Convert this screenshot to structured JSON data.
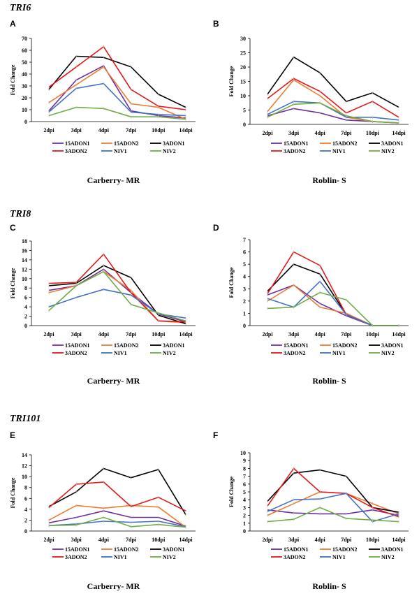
{
  "sections": [
    {
      "title": "TRI6"
    },
    {
      "title": "TRI8"
    },
    {
      "title": "TRI101"
    }
  ],
  "chart_data": [
    {
      "panel": "A",
      "section": "TRI6",
      "type": "line",
      "ylabel": "Fold Change",
      "caption": "Carberry- MR",
      "categories": [
        "2dpi",
        "3dpi",
        "4dpi",
        "7dpi",
        "10dpi",
        "14dpi"
      ],
      "yticks": [
        "0",
        "10",
        "20",
        "30",
        "40",
        "50",
        "60",
        "70"
      ],
      "ylim": [
        0,
        70
      ],
      "series": [
        {
          "name": "15ADON1",
          "color": "#7030a0",
          "values": [
            9,
            35,
            47,
            9,
            5,
            3
          ]
        },
        {
          "name": "15ADON2",
          "color": "#ed7d31",
          "values": [
            16,
            31,
            46,
            15,
            12,
            2
          ]
        },
        {
          "name": "3ADON1",
          "color": "#000000",
          "values": [
            27,
            55,
            54,
            46,
            23,
            12
          ]
        },
        {
          "name": "3ADON2",
          "color": "#e31a1c",
          "values": [
            29,
            46,
            63,
            27,
            13,
            10
          ]
        },
        {
          "name": "NIV1",
          "color": "#4472c4",
          "values": [
            8,
            28,
            32,
            8,
            6,
            5
          ]
        },
        {
          "name": "NIV2",
          "color": "#70ad47",
          "values": [
            5,
            12,
            11,
            4,
            4,
            2
          ]
        }
      ]
    },
    {
      "panel": "B",
      "section": "TRI6",
      "type": "line",
      "ylabel": "Fold Change",
      "caption": "Roblin- S",
      "categories": [
        "2dpi",
        "3dpi",
        "4dpi",
        "7dpi",
        "10dpi",
        "14dpi"
      ],
      "yticks": [
        "0",
        "5",
        "10",
        "15",
        "20",
        "25",
        "30"
      ],
      "ylim": [
        0,
        30
      ],
      "series": [
        {
          "name": "15ADON1",
          "color": "#7030a0",
          "values": [
            3,
            5.5,
            4,
            1.5,
            1,
            0.5
          ]
        },
        {
          "name": "15ADON2",
          "color": "#ed7d31",
          "values": [
            4.5,
            15.5,
            10,
            2.5,
            1,
            0.5
          ]
        },
        {
          "name": "3ADON1",
          "color": "#000000",
          "values": [
            10.5,
            23.5,
            18,
            8,
            11,
            6
          ]
        },
        {
          "name": "3ADON2",
          "color": "#e31a1c",
          "values": [
            9,
            16,
            11.5,
            4,
            8,
            2.5
          ]
        },
        {
          "name": "NIV1",
          "color": "#4472c4",
          "values": [
            3.5,
            8,
            7.5,
            2.5,
            2.5,
            1.5
          ]
        },
        {
          "name": "NIV2",
          "color": "#70ad47",
          "values": [
            2.5,
            7,
            7.5,
            3,
            1,
            0.5
          ]
        }
      ]
    },
    {
      "panel": "C",
      "section": "TRI8",
      "type": "line",
      "ylabel": "Fold Change",
      "caption": "Carberry- MR",
      "categories": [
        "2dpi",
        "3dpi",
        "4dpi",
        "7dpi",
        "10dpi",
        "14dpi"
      ],
      "yticks": [
        "0",
        "2",
        "4",
        "6",
        "8",
        "10",
        "12",
        "14",
        "16",
        "18"
      ],
      "ylim": [
        0,
        18
      ],
      "series": [
        {
          "name": "15ADON1",
          "color": "#7030a0",
          "values": [
            7.5,
            8.5,
            12,
            7,
            2.5,
            0.8
          ]
        },
        {
          "name": "15ADON2",
          "color": "#ed7d31",
          "values": [
            7,
            8.5,
            11.5,
            7.5,
            1,
            0.6
          ]
        },
        {
          "name": "3ADON1",
          "color": "#000000",
          "values": [
            8.5,
            9,
            12.8,
            10.2,
            2.2,
            0.4
          ]
        },
        {
          "name": "3ADON2",
          "color": "#e31a1c",
          "values": [
            9,
            9.2,
            15.2,
            7,
            1,
            0.8
          ]
        },
        {
          "name": "NIV1",
          "color": "#4472c4",
          "values": [
            4,
            6,
            7.7,
            6.5,
            2.5,
            1.6
          ]
        },
        {
          "name": "NIV2",
          "color": "#70ad47",
          "values": [
            3.2,
            8.5,
            11.5,
            4.5,
            2.7,
            1
          ]
        }
      ]
    },
    {
      "panel": "D",
      "section": "TRI8",
      "type": "line",
      "ylabel": "Fold Change",
      "caption": "Roblin- S",
      "categories": [
        "2dpi",
        "3dpi",
        "4dpi",
        "7dpi",
        "10dpi",
        "14dpi"
      ],
      "yticks": [
        "0",
        "1",
        "2",
        "3",
        "4",
        "5",
        "6",
        "7"
      ],
      "ylim": [
        0,
        7
      ],
      "series": [
        {
          "name": "15ADON1",
          "color": "#7030a0",
          "values": [
            2.5,
            3.3,
            1.8,
            0.8,
            0,
            0
          ]
        },
        {
          "name": "15ADON2",
          "color": "#ed7d31",
          "values": [
            2,
            3.3,
            1.5,
            1,
            0,
            0
          ]
        },
        {
          "name": "3ADON1",
          "color": "#000000",
          "values": [
            2.8,
            5,
            4.2,
            0.9,
            0,
            0
          ]
        },
        {
          "name": "3ADON2",
          "color": "#e31a1c",
          "values": [
            2.6,
            6,
            4.9,
            0.9,
            0,
            0
          ]
        },
        {
          "name": "NIV1",
          "color": "#4472c4",
          "values": [
            2.2,
            1.5,
            3.6,
            0.9,
            0,
            0
          ]
        },
        {
          "name": "NIV2",
          "color": "#70ad47",
          "values": [
            1.4,
            1.5,
            2.7,
            2.1,
            0,
            0
          ]
        }
      ]
    },
    {
      "panel": "E",
      "section": "TRI101",
      "type": "line",
      "ylabel": "Fold Change",
      "caption": "Carberry- MR",
      "categories": [
        "2dpi",
        "3dpi",
        "4dpi",
        "7dpi",
        "10dpi",
        "14dpi"
      ],
      "yticks": [
        "0",
        "2",
        "4",
        "6",
        "8",
        "10",
        "12",
        "14"
      ],
      "ylim": [
        0,
        14
      ],
      "series": [
        {
          "name": "15ADON1",
          "color": "#7030a0",
          "values": [
            1.5,
            2.5,
            3.7,
            2.5,
            2.5,
            0.9
          ]
        },
        {
          "name": "15ADON2",
          "color": "#ed7d31",
          "values": [
            2,
            4.7,
            4.2,
            4.7,
            4.4,
            0.7
          ]
        },
        {
          "name": "3ADON1",
          "color": "#000000",
          "values": [
            4.5,
            7.2,
            11.5,
            9.8,
            11.3,
            3
          ]
        },
        {
          "name": "3ADON2",
          "color": "#e31a1c",
          "values": [
            4.3,
            8.6,
            9,
            4.5,
            6.2,
            3.7
          ]
        },
        {
          "name": "NIV1",
          "color": "#4472c4",
          "values": [
            1,
            1.3,
            1.8,
            1.6,
            1.8,
            0.8
          ]
        },
        {
          "name": "NIV2",
          "color": "#70ad47",
          "values": [
            1,
            1.1,
            2.5,
            0.8,
            1.2,
            0.7
          ]
        }
      ]
    },
    {
      "panel": "F",
      "section": "TRI101",
      "type": "line",
      "ylabel": "Fold Change",
      "caption": "Roblin- S",
      "categories": [
        "2dpi",
        "3dpi",
        "4dpi",
        "7dpi",
        "10dpi",
        "14dpi"
      ],
      "yticks": [
        "0",
        "1",
        "2",
        "3",
        "4",
        "5",
        "6",
        "7",
        "8",
        "9",
        "10"
      ],
      "ylim": [
        0,
        10
      ],
      "series": [
        {
          "name": "15ADON1",
          "color": "#7030a0",
          "values": [
            2.7,
            2.3,
            2.2,
            2.2,
            2.7,
            2
          ]
        },
        {
          "name": "15ADON2",
          "color": "#ed7d31",
          "values": [
            2,
            3.5,
            5,
            4.8,
            3.5,
            2.2
          ]
        },
        {
          "name": "3ADON1",
          "color": "#000000",
          "values": [
            3.8,
            7.4,
            7.8,
            7,
            3,
            2.4
          ]
        },
        {
          "name": "3ADON2",
          "color": "#e31a1c",
          "values": [
            3.2,
            8,
            5,
            4.8,
            3,
            1.8
          ]
        },
        {
          "name": "NIV1",
          "color": "#4472c4",
          "values": [
            2.5,
            4,
            4.1,
            4.8,
            1.2,
            2.2
          ]
        },
        {
          "name": "NIV2",
          "color": "#70ad47",
          "values": [
            1.2,
            1.5,
            3,
            1.6,
            1.4,
            1.2
          ]
        }
      ]
    }
  ]
}
